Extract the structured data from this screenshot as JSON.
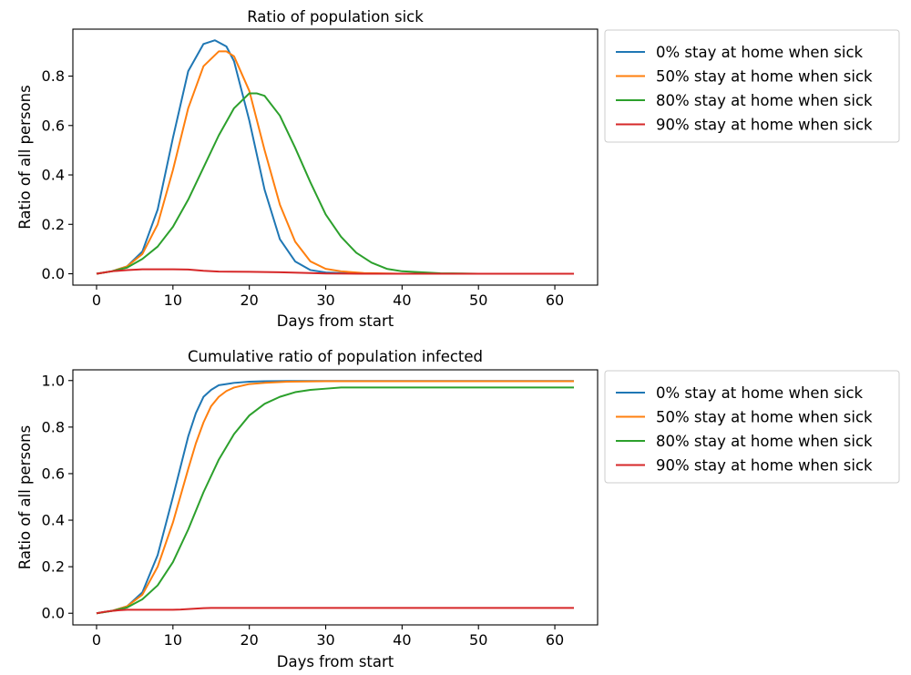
{
  "chart_data": [
    {
      "type": "line",
      "title": "Ratio of population sick",
      "xlabel": "Days from start",
      "ylabel": "Ratio of all persons",
      "xlim": [
        -3.1,
        65.6
      ],
      "ylim": [
        -0.046,
        0.99
      ],
      "xticks": [
        "0",
        "10",
        "20",
        "30",
        "40",
        "50",
        "60"
      ],
      "yticks": [
        "0.0",
        "0.2",
        "0.4",
        "0.6",
        "0.8"
      ],
      "legend_position": "outside right, top",
      "series": [
        {
          "name": "0% stay at home when sick",
          "color": "#1f77b4",
          "x": [
            0,
            2,
            4,
            6,
            8,
            10,
            12,
            14,
            15.5,
            17,
            18,
            20,
            22,
            24,
            26,
            28,
            30,
            35,
            40,
            50,
            62.5
          ],
          "y": [
            0,
            0.01,
            0.03,
            0.09,
            0.26,
            0.55,
            0.82,
            0.93,
            0.945,
            0.92,
            0.86,
            0.62,
            0.34,
            0.14,
            0.05,
            0.015,
            0.005,
            0,
            0,
            0,
            0
          ]
        },
        {
          "name": "50% stay at home when sick",
          "color": "#ff7f0e",
          "x": [
            0,
            2,
            4,
            6,
            8,
            10,
            12,
            14,
            16,
            17,
            18,
            20,
            22,
            24,
            26,
            28,
            30,
            32,
            35,
            40,
            50,
            62.5
          ],
          "y": [
            0,
            0.01,
            0.03,
            0.08,
            0.2,
            0.42,
            0.67,
            0.84,
            0.9,
            0.9,
            0.88,
            0.74,
            0.5,
            0.28,
            0.13,
            0.05,
            0.02,
            0.01,
            0.003,
            0,
            0,
            0
          ]
        },
        {
          "name": "80% stay at home when sick",
          "color": "#2ca02c",
          "x": [
            0,
            2,
            4,
            6,
            8,
            10,
            12,
            14,
            16,
            18,
            20,
            21,
            22,
            24,
            26,
            28,
            30,
            32,
            34,
            36,
            38,
            40,
            45,
            50,
            62.5
          ],
          "y": [
            0,
            0.01,
            0.025,
            0.06,
            0.11,
            0.19,
            0.3,
            0.43,
            0.56,
            0.67,
            0.73,
            0.73,
            0.72,
            0.64,
            0.51,
            0.37,
            0.24,
            0.15,
            0.085,
            0.045,
            0.02,
            0.01,
            0.002,
            0,
            0
          ]
        },
        {
          "name": "90% stay at home when sick",
          "color": "#d62728",
          "x": [
            0,
            2,
            4,
            6,
            8,
            10,
            12,
            14,
            16,
            20,
            24,
            28,
            30,
            35,
            40,
            50,
            62.5
          ],
          "y": [
            0,
            0.01,
            0.015,
            0.018,
            0.018,
            0.018,
            0.017,
            0.012,
            0.009,
            0.008,
            0.006,
            0.003,
            0.001,
            0,
            0,
            0,
            0
          ]
        }
      ]
    },
    {
      "type": "line",
      "title": "Cumulative ratio of population infected",
      "xlabel": "Days from start",
      "ylabel": "Ratio of all persons",
      "xlim": [
        -3.1,
        65.6
      ],
      "ylim": [
        -0.05,
        1.046
      ],
      "xticks": [
        "0",
        "10",
        "20",
        "30",
        "40",
        "50",
        "60"
      ],
      "yticks": [
        "0.0",
        "0.2",
        "0.4",
        "0.6",
        "0.8",
        "1.0"
      ],
      "legend_position": "outside right, top",
      "series": [
        {
          "name": "0% stay at home when sick",
          "color": "#1f77b4",
          "x": [
            0,
            2,
            4,
            6,
            8,
            10,
            11,
            12,
            13,
            14,
            15,
            16,
            17,
            18,
            20,
            22,
            25,
            30,
            62.5
          ],
          "y": [
            0,
            0.01,
            0.03,
            0.09,
            0.25,
            0.5,
            0.63,
            0.76,
            0.86,
            0.93,
            0.96,
            0.98,
            0.985,
            0.99,
            0.995,
            0.997,
            0.998,
            0.998,
            0.998
          ]
        },
        {
          "name": "50% stay at home when sick",
          "color": "#ff7f0e",
          "x": [
            0,
            2,
            4,
            6,
            8,
            10,
            12,
            13,
            14,
            15,
            16,
            17,
            18,
            20,
            22,
            25,
            30,
            40,
            62.5
          ],
          "y": [
            0,
            0.01,
            0.03,
            0.08,
            0.2,
            0.39,
            0.62,
            0.73,
            0.82,
            0.89,
            0.93,
            0.955,
            0.97,
            0.985,
            0.99,
            0.995,
            0.997,
            0.997,
            0.997
          ]
        },
        {
          "name": "80% stay at home when sick",
          "color": "#2ca02c",
          "x": [
            0,
            2,
            4,
            6,
            8,
            10,
            12,
            14,
            16,
            18,
            20,
            22,
            24,
            26,
            28,
            30,
            32,
            35,
            40,
            50,
            62.5
          ],
          "y": [
            0,
            0.01,
            0.025,
            0.06,
            0.12,
            0.22,
            0.36,
            0.52,
            0.66,
            0.77,
            0.85,
            0.9,
            0.93,
            0.95,
            0.96,
            0.965,
            0.97,
            0.97,
            0.97,
            0.97,
            0.97
          ]
        },
        {
          "name": "90% stay at home when sick",
          "color": "#d62728",
          "x": [
            0,
            1,
            2,
            3,
            4,
            6,
            8,
            10,
            11,
            12,
            13,
            14,
            15,
            20,
            30,
            40,
            50,
            62.5
          ],
          "y": [
            0,
            0.006,
            0.01,
            0.013,
            0.015,
            0.015,
            0.015,
            0.015,
            0.016,
            0.018,
            0.02,
            0.022,
            0.023,
            0.023,
            0.023,
            0.023,
            0.023,
            0.023
          ]
        }
      ]
    }
  ]
}
